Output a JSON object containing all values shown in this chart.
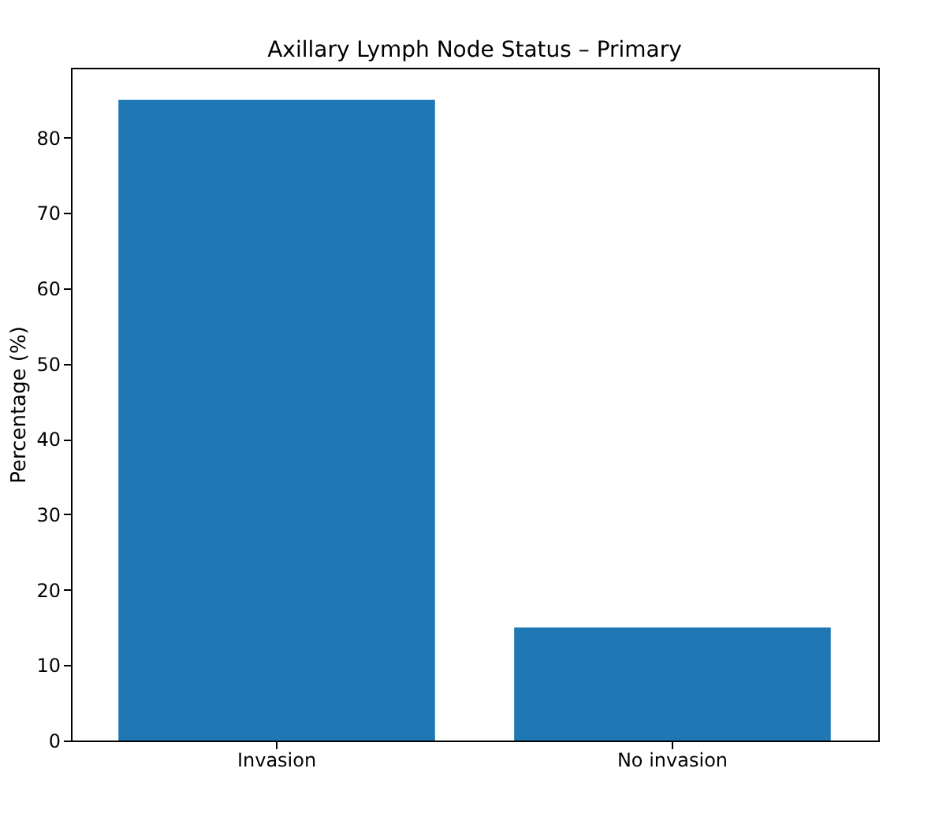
{
  "chart_data": {
    "type": "bar",
    "title": "Axillary Lymph Node Status – Primary",
    "ylabel": "Percentage (%)",
    "categories": [
      "Invasion",
      "No invasion"
    ],
    "values": [
      85,
      15
    ],
    "color": "#1f77b4",
    "ylim": [
      0,
      89.25
    ],
    "yticks": [
      0,
      10,
      20,
      30,
      40,
      50,
      60,
      70,
      80
    ],
    "grid": false
  }
}
